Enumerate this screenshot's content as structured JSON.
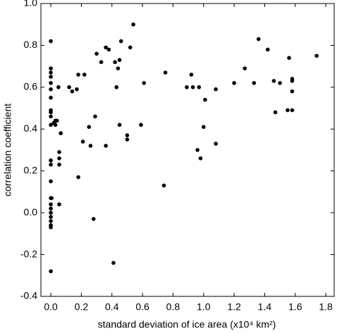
{
  "chart_data": {
    "type": "scatter",
    "x_label": "standard deviation of ice area (x10⁴ km²)",
    "y_label": "correlation coefficient",
    "color": "#000000",
    "xlim": [
      -0.065,
      1.855
    ],
    "ylim": [
      -0.4,
      1.0
    ],
    "xticks": [
      {
        "value": 0,
        "label": "0.0"
      },
      0.2,
      0.4,
      0.6,
      0.8,
      {
        "value": 1,
        "label": "1.0"
      },
      1.2,
      1.4,
      1.6,
      1.8
    ],
    "yticks": [
      -0.4,
      -0.2,
      {
        "value": 0,
        "label": "0.0"
      },
      0.2,
      0.4,
      0.6,
      0.8,
      {
        "value": 1,
        "label": "1.0"
      }
    ],
    "x": [
      0,
      0,
      0,
      0,
      0,
      0,
      0,
      0,
      0,
      0,
      0,
      0,
      0,
      0,
      0,
      0.005,
      0,
      0,
      0,
      0,
      0,
      0,
      0,
      0,
      0.02,
      0.03,
      0.03,
      0.04,
      0.05,
      0.055,
      0.055,
      0.055,
      0.055,
      0.065,
      0.12,
      0.14,
      0.17,
      0.18,
      0.22,
      0.18,
      0.21,
      0.25,
      0.26,
      0.28,
      0.29,
      0.3,
      0.33,
      0.36,
      0.36,
      0.38,
      0.41,
      0.42,
      0.43,
      0.44,
      0.45,
      0.46,
      0.45,
      0.5,
      0.5,
      0.52,
      0.54,
      0.59,
      0.61,
      0.74,
      0.75,
      0.89,
      0.92,
      0.93,
      0.96,
      0.97,
      0.98,
      1.0,
      1.01,
      1.08,
      1.08,
      1.2,
      1.27,
      1.33,
      1.36,
      1.42,
      1.46,
      1.47,
      1.5,
      1.55,
      1.56,
      1.58,
      1.58,
      1.58,
      1.58,
      1.74
    ],
    "y": [
      0.82,
      0.69,
      0.67,
      0.65,
      0.62,
      0.59,
      0.55,
      0.49,
      0.48,
      0.46,
      0.42,
      0.25,
      0.23,
      0.15,
      0.07,
      0.07,
      0.04,
      0.02,
      0.0,
      -0.02,
      -0.04,
      -0.06,
      -0.07,
      -0.28,
      0.43,
      0.44,
      0.42,
      0.44,
      0.6,
      0.23,
      0.26,
      0.29,
      0.04,
      0.38,
      0.6,
      0.58,
      0.59,
      0.66,
      0.66,
      0.17,
      0.34,
      0.41,
      0.32,
      -0.03,
      0.46,
      0.76,
      0.72,
      0.32,
      0.79,
      0.78,
      -0.24,
      0.72,
      0.6,
      0.69,
      0.73,
      0.82,
      0.42,
      0.37,
      0.35,
      0.79,
      0.9,
      0.42,
      0.62,
      0.13,
      0.67,
      0.6,
      0.66,
      0.6,
      0.3,
      0.6,
      0.26,
      0.41,
      0.54,
      0.59,
      0.33,
      0.62,
      0.69,
      0.62,
      0.83,
      0.78,
      0.63,
      0.48,
      0.62,
      0.49,
      0.74,
      0.63,
      0.64,
      0.58,
      0.49,
      0.75
    ]
  }
}
